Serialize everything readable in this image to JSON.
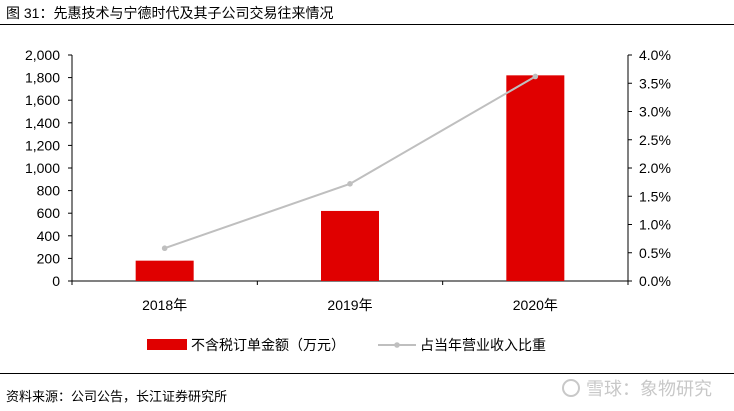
{
  "figure": {
    "title": "图 31：先惠技术与宁德时代及其子公司交易往来情况",
    "source": "资料来源：公司公告，长江证券研究所",
    "watermark": "雪球：象物研究"
  },
  "chart_data": {
    "type": "bar",
    "title": "",
    "xlabel": "",
    "ylabel": "",
    "categories": [
      "2018年",
      "2019年",
      "2020年"
    ],
    "y_left": {
      "ylim": [
        0,
        2000
      ],
      "ticks": [
        0,
        200,
        400,
        600,
        800,
        1000,
        1200,
        1400,
        1600,
        1800,
        2000
      ],
      "tick_labels": [
        "0",
        "200",
        "400",
        "600",
        "800",
        "1,000",
        "1,200",
        "1,400",
        "1,600",
        "1,800",
        "2,000"
      ]
    },
    "y_right": {
      "ylim": [
        0,
        4.0
      ],
      "ticks": [
        0,
        0.5,
        1.0,
        1.5,
        2.0,
        2.5,
        3.0,
        3.5,
        4.0
      ],
      "tick_labels": [
        "0.0%",
        "0.5%",
        "1.0%",
        "1.5%",
        "2.0%",
        "2.5%",
        "3.0%",
        "3.5%",
        "4.0%"
      ]
    },
    "series": [
      {
        "name": "不含税订单金额（万元）",
        "type": "bar",
        "axis": "left",
        "color": "#e00000",
        "values": [
          180,
          620,
          1820
        ]
      },
      {
        "name": "占当年营业收入比重",
        "type": "line",
        "axis": "right",
        "color": "#bfbfbf",
        "values": [
          0.58,
          1.72,
          3.62
        ]
      }
    ],
    "grid": false,
    "legend": "bottom"
  }
}
